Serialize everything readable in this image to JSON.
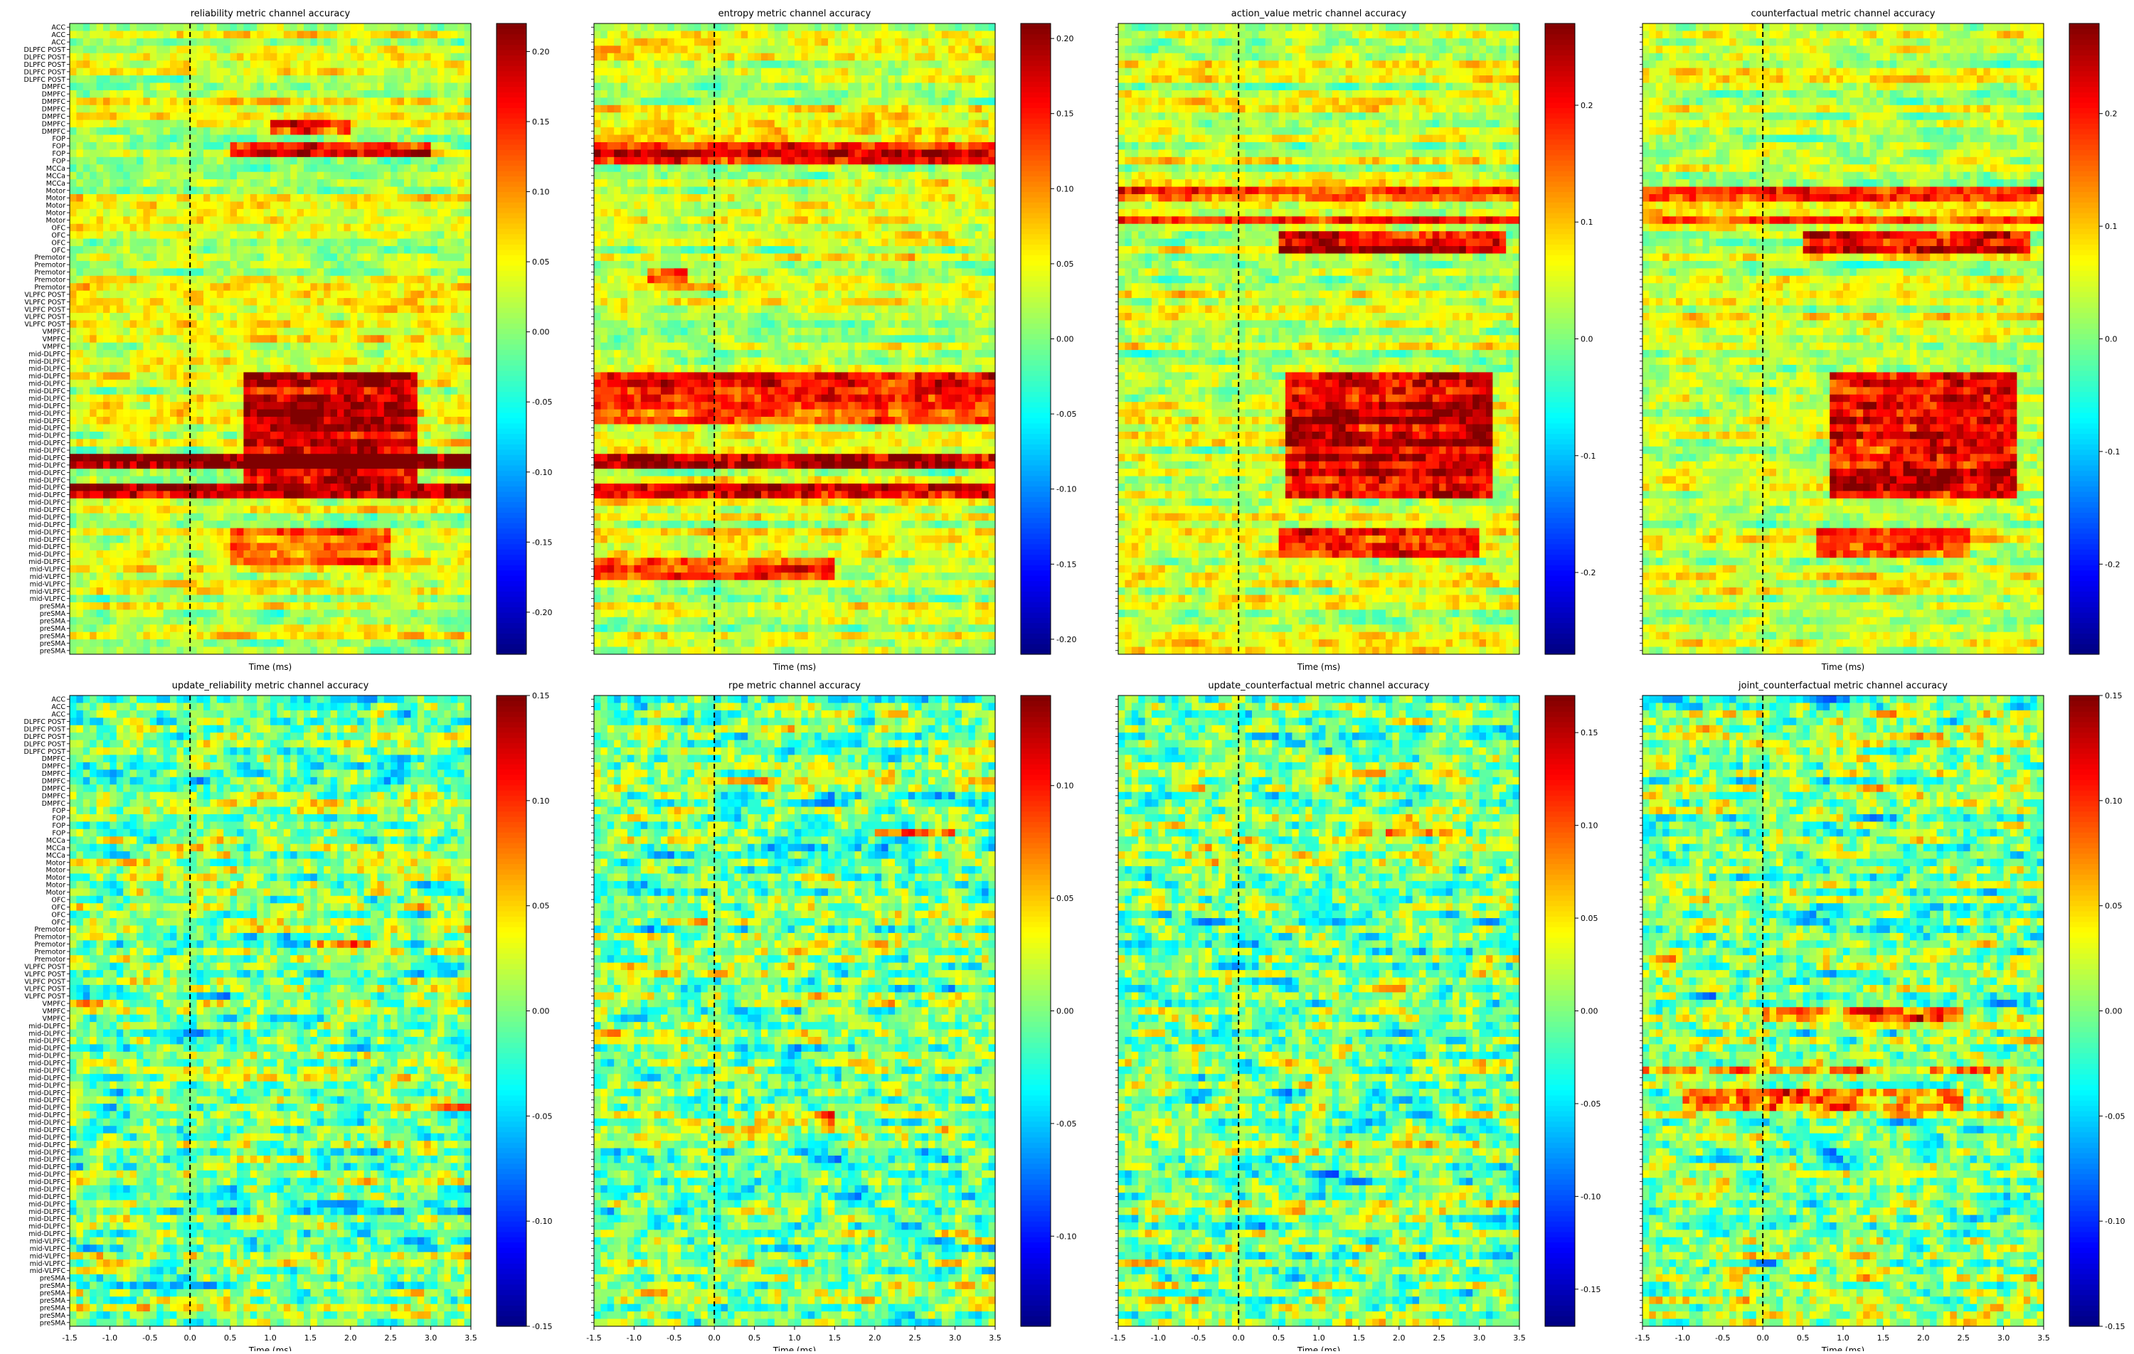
{
  "chart_data": [
    {
      "type": "heatmap",
      "title": "reliability metric channel accuracy",
      "xlabel": "Time (ms)",
      "ylabel": "",
      "xlim": [
        -1.5,
        3.5
      ],
      "xticks": [],
      "show_xtick_labels": false,
      "event_line_x": 0.0,
      "clim": [
        -0.23,
        0.22
      ],
      "cbar_ticks": [
        -0.2,
        -0.15,
        -0.1,
        -0.05,
        0.0,
        0.05,
        0.1,
        0.15,
        0.2
      ],
      "cbar_tick_labels": [
        "-0.20",
        "-0.15",
        "-0.10",
        "-0.05",
        "0.00",
        "0.05",
        "0.10",
        "0.15",
        "0.20"
      ],
      "show_ylabels": true,
      "colormap": "jet",
      "hot_rows": [
        {
          "rows": [
            13,
            14
          ],
          "strength": 0.7,
          "t0": 1.0,
          "t1": 2.0
        },
        {
          "rows": [
            16,
            17
          ],
          "strength": 0.8,
          "t0": 0.5,
          "t1": 3.0
        },
        {
          "rows": [
            47,
            48,
            49,
            50,
            51,
            52,
            53,
            54,
            55,
            56,
            57,
            58,
            59,
            60,
            61
          ],
          "strength": 0.9,
          "t0": 0.7,
          "t1": 2.8
        },
        {
          "rows": [
            58,
            59,
            62,
            63
          ],
          "strength": 1.0,
          "t0": -1.5,
          "t1": 3.5
        },
        {
          "rows": [
            68,
            69,
            70,
            71,
            72
          ],
          "strength": 0.5,
          "t0": 0.5,
          "t1": 2.5
        }
      ],
      "warm": true,
      "seed": 11
    },
    {
      "type": "heatmap",
      "title": "entropy metric channel accuracy",
      "xlabel": "Time (ms)",
      "ylabel": "",
      "xlim": [
        -1.5,
        3.5
      ],
      "xticks": [],
      "show_xtick_labels": false,
      "event_line_x": 0.0,
      "clim": [
        -0.21,
        0.21
      ],
      "cbar_ticks": [
        -0.2,
        -0.15,
        -0.1,
        -0.05,
        0.0,
        0.05,
        0.1,
        0.15,
        0.2
      ],
      "cbar_tick_labels": [
        "-0.20",
        "-0.15",
        "-0.10",
        "-0.05",
        "0.00",
        "0.05",
        "0.10",
        "0.15",
        "0.20"
      ],
      "show_ylabels": false,
      "colormap": "jet",
      "hot_rows": [
        {
          "rows": [
            16,
            17,
            18
          ],
          "strength": 0.8,
          "t0": -1.5,
          "t1": 3.5
        },
        {
          "rows": [
            33,
            34
          ],
          "strength": 0.7,
          "t0": -0.8,
          "t1": -0.3
        },
        {
          "rows": [
            47,
            48,
            49,
            50,
            51,
            52,
            53
          ],
          "strength": 0.7,
          "t0": -1.5,
          "t1": 3.5
        },
        {
          "rows": [
            58,
            59,
            62,
            63
          ],
          "strength": 1.0,
          "t0": -1.5,
          "t1": 3.5
        },
        {
          "rows": [
            72,
            73,
            74
          ],
          "strength": 0.7,
          "t0": -1.5,
          "t1": 1.5
        }
      ],
      "warm": true,
      "seed": 23
    },
    {
      "type": "heatmap",
      "title": "action_value metric channel accuracy",
      "xlabel": "Time (ms)",
      "ylabel": "",
      "xlim": [
        -1.5,
        3.5
      ],
      "xticks": [],
      "show_xtick_labels": false,
      "event_line_x": 0.0,
      "clim": [
        -0.27,
        0.27
      ],
      "cbar_ticks": [
        -0.2,
        -0.1,
        0.0,
        0.1,
        0.2
      ],
      "cbar_tick_labels": [
        "-0.2",
        "-0.1",
        "0.0",
        "0.1",
        "0.2"
      ],
      "show_ylabels": false,
      "colormap": "jet",
      "hot_rows": [
        {
          "rows": [
            22,
            23,
            26
          ],
          "strength": 0.6,
          "t0": -1.5,
          "t1": 3.5
        },
        {
          "rows": [
            28,
            29,
            30
          ],
          "strength": 0.9,
          "t0": 0.5,
          "t1": 3.3
        },
        {
          "rows": [
            47,
            48,
            49,
            50,
            51,
            52,
            53,
            54,
            55,
            56,
            57,
            58,
            59,
            60,
            61,
            62,
            63
          ],
          "strength": 0.85,
          "t0": 0.6,
          "t1": 3.2
        },
        {
          "rows": [
            68,
            69,
            70,
            71
          ],
          "strength": 0.6,
          "t0": 0.5,
          "t1": 3.0
        }
      ],
      "warm": true,
      "seed": 37
    },
    {
      "type": "heatmap",
      "title": "counterfactual metric channel accuracy",
      "xlabel": "Time (ms)",
      "ylabel": "",
      "xlim": [
        -1.5,
        3.5
      ],
      "xticks": [],
      "show_xtick_labels": false,
      "event_line_x": 0.0,
      "clim": [
        -0.28,
        0.28
      ],
      "cbar_ticks": [
        -0.2,
        -0.1,
        0.0,
        0.1,
        0.2
      ],
      "cbar_tick_labels": [
        "-0.2",
        "-0.1",
        "0.0",
        "0.1",
        "0.2"
      ],
      "show_ylabels": false,
      "colormap": "jet",
      "hot_rows": [
        {
          "rows": [
            22,
            23,
            26
          ],
          "strength": 0.6,
          "t0": -1.5,
          "t1": 3.5
        },
        {
          "rows": [
            28,
            29,
            30
          ],
          "strength": 0.9,
          "t0": 0.5,
          "t1": 3.3
        },
        {
          "rows": [
            47,
            48,
            49,
            50,
            51,
            52,
            53,
            54,
            55,
            56,
            57,
            58,
            59,
            60,
            61,
            62,
            63
          ],
          "strength": 0.85,
          "t0": 0.8,
          "t1": 3.2
        },
        {
          "rows": [
            68,
            69,
            70,
            71
          ],
          "strength": 0.6,
          "t0": 0.7,
          "t1": 2.6
        }
      ],
      "warm": true,
      "seed": 41
    },
    {
      "type": "heatmap",
      "title": "update_reliability metric channel accuracy",
      "xlabel": "Time (ms)",
      "ylabel": "",
      "xlim": [
        -1.5,
        3.5
      ],
      "xticks": [
        -1.5,
        -1.0,
        -0.5,
        0.0,
        0.5,
        1.0,
        1.5,
        2.0,
        2.5,
        3.0,
        3.5
      ],
      "show_xtick_labels": true,
      "event_line_x": 0.0,
      "clim": [
        -0.15,
        0.15
      ],
      "cbar_ticks": [
        -0.15,
        -0.1,
        -0.05,
        0.0,
        0.05,
        0.1,
        0.15
      ],
      "cbar_tick_labels": [
        "-0.15",
        "-0.10",
        "-0.05",
        "0.00",
        "0.05",
        "0.10",
        "0.15"
      ],
      "show_ylabels": true,
      "colormap": "jet",
      "hot_rows": [
        {
          "rows": [
            33
          ],
          "strength": 0.6,
          "t0": 1.5,
          "t1": 2.5
        },
        {
          "rows": [
            55
          ],
          "strength": 0.6,
          "t0": 2.5,
          "t1": 3.5
        }
      ],
      "warm": false,
      "seed": 53
    },
    {
      "type": "heatmap",
      "title": "rpe metric channel accuracy",
      "xlabel": "Time (ms)",
      "ylabel": "",
      "xlim": [
        -1.5,
        3.5
      ],
      "xticks": [
        -1.5,
        -1.0,
        -0.5,
        0.0,
        0.5,
        1.0,
        1.5,
        2.0,
        2.5,
        3.0,
        3.5
      ],
      "show_xtick_labels": true,
      "event_line_x": 0.0,
      "clim": [
        -0.14,
        0.14
      ],
      "cbar_ticks": [
        -0.1,
        -0.05,
        0.0,
        0.05,
        0.1
      ],
      "cbar_tick_labels": [
        "-0.10",
        "-0.05",
        "0.00",
        "0.05",
        "0.10"
      ],
      "show_ylabels": false,
      "colormap": "jet",
      "hot_rows": [
        {
          "rows": [
            18
          ],
          "strength": 0.6,
          "t0": 2.0,
          "t1": 3.0
        },
        {
          "rows": [
            56,
            57
          ],
          "strength": 0.5,
          "t0": 0.5,
          "t1": 1.5
        }
      ],
      "warm": false,
      "seed": 67
    },
    {
      "type": "heatmap",
      "title": "update_counterfactual metric channel accuracy",
      "xlabel": "Time (ms)",
      "ylabel": "",
      "xlim": [
        -1.5,
        3.5
      ],
      "xticks": [
        -1.5,
        -1.0,
        -0.5,
        0.0,
        0.5,
        1.0,
        1.5,
        2.0,
        2.5,
        3.0,
        3.5
      ],
      "show_xtick_labels": true,
      "event_line_x": 0.0,
      "clim": [
        -0.17,
        0.17
      ],
      "cbar_ticks": [
        -0.15,
        -0.1,
        -0.05,
        0.0,
        0.05,
        0.1,
        0.15
      ],
      "cbar_tick_labels": [
        "-0.15",
        "-0.10",
        "-0.05",
        "0.00",
        "0.05",
        "0.10",
        "0.15"
      ],
      "show_ylabels": false,
      "colormap": "jet",
      "hot_rows": [
        {
          "rows": [
            18
          ],
          "strength": 0.6,
          "t0": 1.8,
          "t1": 2.8
        }
      ],
      "warm": false,
      "seed": 79
    },
    {
      "type": "heatmap",
      "title": "joint_counterfactual metric channel accuracy",
      "xlabel": "Time (ms)",
      "ylabel": "",
      "xlim": [
        -1.5,
        3.5
      ],
      "xticks": [
        -1.5,
        -1.0,
        -0.5,
        0.0,
        0.5,
        1.0,
        1.5,
        2.0,
        2.5,
        3.0,
        3.5
      ],
      "show_xtick_labels": true,
      "event_line_x": 0.0,
      "clim": [
        -0.15,
        0.15
      ],
      "cbar_ticks": [
        -0.15,
        -0.1,
        -0.05,
        0.0,
        0.05,
        0.1,
        0.15
      ],
      "cbar_tick_labels": [
        "-0.15",
        "-0.10",
        "-0.05",
        "0.00",
        "0.05",
        "0.10",
        "0.15"
      ],
      "show_ylabels": false,
      "colormap": "jet",
      "hot_rows": [
        {
          "rows": [
            42,
            43
          ],
          "strength": 0.6,
          "t0": 0.0,
          "t1": 2.5
        },
        {
          "rows": [
            50
          ],
          "strength": 0.7,
          "t0": -1.5,
          "t1": 3.5
        },
        {
          "rows": [
            53,
            54,
            55
          ],
          "strength": 0.6,
          "t0": -1.0,
          "t1": 2.5
        }
      ],
      "warm": false,
      "seed": 97
    }
  ],
  "channel_labels": [
    "ACC",
    "ACC",
    "ACC",
    "DLPFC POST",
    "DLPFC POST",
    "DLPFC POST",
    "DLPFC POST",
    "DLPFC POST",
    "DMPFC",
    "DMPFC",
    "DMPFC",
    "DMPFC",
    "DMPFC",
    "DMPFC",
    "DMPFC",
    "FOP",
    "FOP",
    "FOP",
    "FOP",
    "MCCa",
    "MCCa",
    "MCCa",
    "Motor",
    "Motor",
    "Motor",
    "Motor",
    "Motor",
    "OFC",
    "OFC",
    "OFC",
    "OFC",
    "Premotor",
    "Premotor",
    "Premotor",
    "Premotor",
    "Premotor",
    "VLPFC POST",
    "VLPFC POST",
    "VLPFC POST",
    "VLPFC POST",
    "VLPFC POST",
    "VMPFC",
    "VMPFC",
    "VMPFC",
    "mid-DLPFC",
    "mid-DLPFC",
    "mid-DLPFC",
    "mid-DLPFC",
    "mid-DLPFC",
    "mid-DLPFC",
    "mid-DLPFC",
    "mid-DLPFC",
    "mid-DLPFC",
    "mid-DLPFC",
    "mid-DLPFC",
    "mid-DLPFC",
    "mid-DLPFC",
    "mid-DLPFC",
    "mid-DLPFC",
    "mid-DLPFC",
    "mid-DLPFC",
    "mid-DLPFC",
    "mid-DLPFC",
    "mid-DLPFC",
    "mid-DLPFC",
    "mid-DLPFC",
    "mid-DLPFC",
    "mid-DLPFC",
    "mid-DLPFC",
    "mid-DLPFC",
    "mid-DLPFC",
    "mid-DLPFC",
    "mid-DLPFC",
    "mid-VLPFC",
    "mid-VLPFC",
    "mid-VLPFC",
    "mid-VLPFC",
    "mid-VLPFC",
    "preSMA",
    "preSMA",
    "preSMA",
    "preSMA",
    "preSMA",
    "preSMA",
    "preSMA"
  ]
}
